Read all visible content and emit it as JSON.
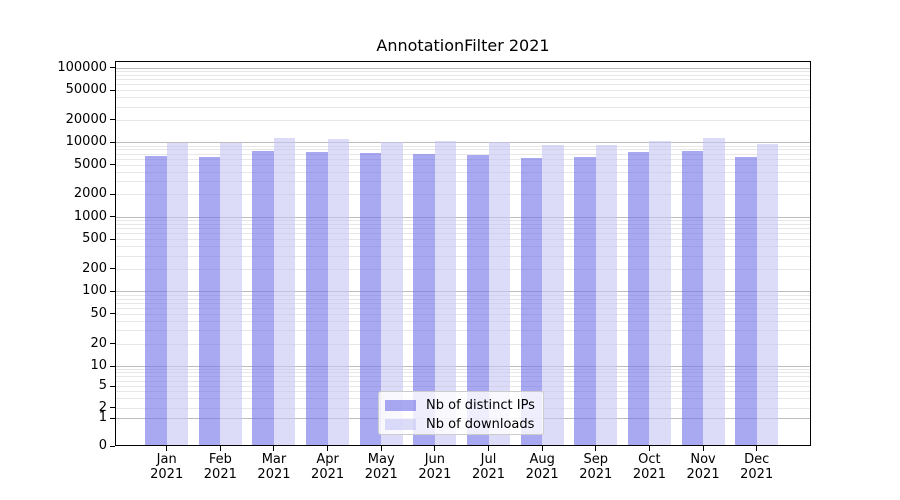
{
  "title": "AnnotationFilter 2021",
  "chart_data": {
    "type": "bar",
    "title": "AnnotationFilter 2021",
    "categories": [
      [
        "Jan",
        "2021"
      ],
      [
        "Feb",
        "2021"
      ],
      [
        "Mar",
        "2021"
      ],
      [
        "Apr",
        "2021"
      ],
      [
        "May",
        "2021"
      ],
      [
        "Jun",
        "2021"
      ],
      [
        "Jul",
        "2021"
      ],
      [
        "Aug",
        "2021"
      ],
      [
        "Sep",
        "2021"
      ],
      [
        "Oct",
        "2021"
      ],
      [
        "Nov",
        "2021"
      ],
      [
        "Dec",
        "2021"
      ]
    ],
    "series": [
      {
        "name": "Nb of distinct IPs",
        "color": "#7070e8",
        "alpha": 0.6,
        "values": [
          6400,
          6100,
          7400,
          7200,
          6900,
          6800,
          6600,
          5900,
          6100,
          7100,
          7400,
          6100
        ]
      },
      {
        "name": "Nb of downloads",
        "color": "#c5c5f5",
        "alpha": 0.6,
        "values": [
          9600,
          9500,
          11100,
          10600,
          9900,
          10200,
          9900,
          8900,
          9000,
          10200,
          11000,
          9100
        ]
      }
    ],
    "xlabel": "",
    "ylabel": "",
    "yscale": "symlog",
    "ylim": [
      0,
      100000
    ],
    "yticks": [
      0,
      1,
      2,
      5,
      10,
      20,
      50,
      100,
      200,
      500,
      1000,
      2000,
      5000,
      10000,
      20000,
      50000,
      100000
    ],
    "grid": "both",
    "legend_position": "lower center",
    "colors": {
      "grid_major": "#bdbdbd",
      "grid_minor": "#e7e7e7",
      "spine": "#000000",
      "legend_border": "#cccccc"
    }
  }
}
